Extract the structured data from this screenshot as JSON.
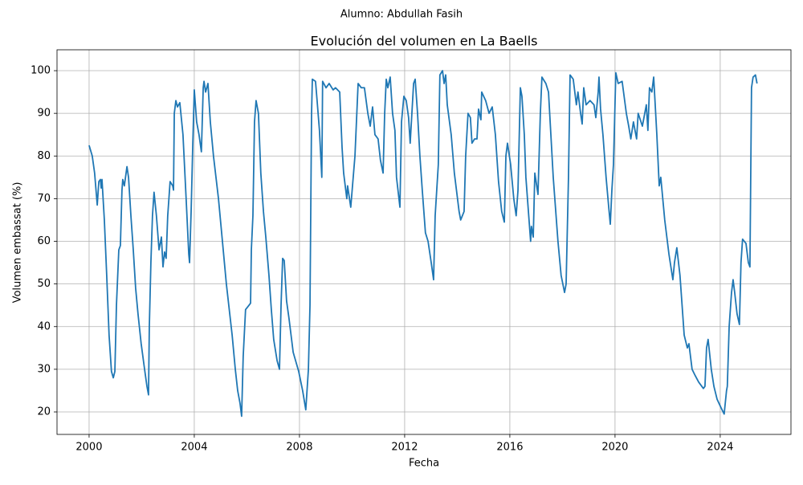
{
  "chart_data": {
    "type": "line",
    "suptitle": "Alumno: Abdullah Fasih",
    "title": "Evolución del volumen en La Baells",
    "xlabel": "Fecha",
    "ylabel": "Volumen embassat (%)",
    "color": "#1f77b4",
    "grid": true,
    "xlim": [
      1998.78,
      2026.69
    ],
    "ylim": [
      14.73,
      104.9
    ],
    "xticks": [
      2000,
      2004,
      2008,
      2012,
      2016,
      2020,
      2024
    ],
    "yticks": [
      20,
      30,
      40,
      50,
      60,
      70,
      80,
      90,
      100
    ],
    "x": [
      2000.0,
      2000.12,
      2000.21,
      2000.31,
      2000.37,
      2000.43,
      2000.46,
      2000.49,
      2000.58,
      2000.67,
      2000.76,
      2000.85,
      2000.92,
      2000.98,
      2001.04,
      2001.13,
      2001.19,
      2001.25,
      2001.28,
      2001.34,
      2001.44,
      2001.5,
      2001.59,
      2001.68,
      2001.77,
      2001.86,
      2001.98,
      2002.11,
      2002.2,
      2002.26,
      2002.29,
      2002.35,
      2002.41,
      2002.47,
      2002.56,
      2002.66,
      2002.75,
      2002.81,
      2002.87,
      2002.93,
      2002.99,
      2003.08,
      2003.18,
      2003.21,
      2003.24,
      2003.3,
      2003.36,
      2003.45,
      2003.57,
      2003.69,
      2003.79,
      2003.82,
      2003.88,
      2003.94,
      2004.0,
      2004.09,
      2004.18,
      2004.27,
      2004.34,
      2004.37,
      2004.43,
      2004.52,
      2004.61,
      2004.73,
      2004.92,
      2005.07,
      2005.22,
      2005.44,
      2005.56,
      2005.65,
      2005.74,
      2005.8,
      2005.86,
      2005.95,
      2006.08,
      2006.14,
      2006.17,
      2006.23,
      2006.29,
      2006.35,
      2006.44,
      2006.53,
      2006.63,
      2006.72,
      2006.84,
      2006.93,
      2007.02,
      2007.15,
      2007.24,
      2007.3,
      2007.36,
      2007.42,
      2007.51,
      2007.6,
      2007.76,
      2007.97,
      2008.12,
      2008.24,
      2008.34,
      2008.4,
      2008.46,
      2008.49,
      2008.61,
      2008.67,
      2008.76,
      2008.85,
      2008.88,
      2009.01,
      2009.13,
      2009.28,
      2009.37,
      2009.53,
      2009.62,
      2009.68,
      2009.8,
      2009.83,
      2009.95,
      2010.11,
      2010.23,
      2010.35,
      2010.47,
      2010.6,
      2010.69,
      2010.78,
      2010.87,
      2010.99,
      2011.08,
      2011.18,
      2011.24,
      2011.3,
      2011.36,
      2011.45,
      2011.54,
      2011.63,
      2011.69,
      2011.82,
      2011.88,
      2011.97,
      2012.06,
      2012.15,
      2012.21,
      2012.34,
      2012.4,
      2012.49,
      2012.58,
      2012.67,
      2012.79,
      2012.89,
      2013.01,
      2013.1,
      2013.16,
      2013.22,
      2013.28,
      2013.34,
      2013.44,
      2013.5,
      2013.56,
      2013.62,
      2013.77,
      2013.89,
      2014.07,
      2014.13,
      2014.26,
      2014.32,
      2014.41,
      2014.5,
      2014.56,
      2014.66,
      2014.75,
      2014.81,
      2014.9,
      2014.93,
      2015.08,
      2015.21,
      2015.33,
      2015.45,
      2015.57,
      2015.69,
      2015.79,
      2015.85,
      2015.91,
      2016.03,
      2016.15,
      2016.24,
      2016.31,
      2016.4,
      2016.46,
      2016.55,
      2016.61,
      2016.73,
      2016.79,
      2016.82,
      2016.89,
      2016.95,
      2017.07,
      2017.16,
      2017.22,
      2017.37,
      2017.47,
      2017.56,
      2017.65,
      2017.83,
      2017.95,
      2018.08,
      2018.14,
      2018.23,
      2018.29,
      2018.41,
      2018.53,
      2018.59,
      2018.69,
      2018.75,
      2018.81,
      2018.9,
      2019.05,
      2019.2,
      2019.27,
      2019.36,
      2019.39,
      2019.45,
      2019.54,
      2019.66,
      2019.76,
      2019.82,
      2019.88,
      2019.94,
      2020.03,
      2020.12,
      2020.27,
      2020.43,
      2020.52,
      2020.6,
      2020.7,
      2020.82,
      2020.88,
      2021.04,
      2021.19,
      2021.25,
      2021.31,
      2021.4,
      2021.47,
      2021.59,
      2021.68,
      2021.74,
      2021.89,
      2022.05,
      2022.2,
      2022.26,
      2022.35,
      2022.47,
      2022.63,
      2022.75,
      2022.81,
      2022.93,
      2023.05,
      2023.18,
      2023.36,
      2023.42,
      2023.48,
      2023.54,
      2023.66,
      2023.76,
      2023.88,
      2024.03,
      2024.15,
      2024.24,
      2024.27,
      2024.34,
      2024.43,
      2024.49,
      2024.55,
      2024.64,
      2024.73,
      2024.79,
      2024.85,
      2024.98,
      2025.07,
      2025.13,
      2025.19,
      2025.25,
      2025.34,
      2025.4
    ],
    "values": [
      82.5,
      80,
      76,
      68.5,
      74,
      74.5,
      72.5,
      74.5,
      65,
      52,
      38,
      29.5,
      28,
      29.5,
      45,
      58,
      59,
      72,
      74.5,
      73,
      77.5,
      75,
      66,
      58,
      49,
      43,
      36,
      30,
      26,
      24,
      40,
      55,
      66,
      71.5,
      66,
      58,
      61,
      54,
      57.5,
      56,
      66,
      74,
      73,
      72,
      90,
      93,
      91.5,
      92.5,
      85,
      70,
      57,
      55,
      67,
      82,
      95.5,
      88,
      85,
      81,
      96,
      97.5,
      95,
      97,
      88,
      80,
      70,
      60,
      50,
      38,
      30,
      25,
      22,
      19,
      33,
      44,
      45,
      45.5,
      58,
      66,
      88,
      93,
      90,
      76,
      67,
      61,
      52,
      44,
      37,
      32,
      30,
      45,
      56,
      55.5,
      46,
      42,
      34,
      29.5,
      25,
      20.5,
      30,
      45,
      90,
      98,
      97.5,
      93,
      86,
      75,
      97.5,
      96,
      97,
      95.5,
      96,
      95,
      82,
      76,
      70,
      73,
      68,
      80,
      97,
      96,
      96,
      90,
      87,
      91.5,
      85,
      84,
      79,
      76,
      90,
      98,
      96,
      98.5,
      90,
      86,
      75,
      68,
      88,
      94,
      93,
      89,
      83,
      97,
      98,
      90,
      80,
      72,
      62,
      60,
      55,
      51,
      66,
      72,
      78,
      99,
      100,
      97,
      99,
      92,
      85,
      76,
      67,
      65,
      67,
      80,
      90,
      89,
      83,
      84,
      84,
      91,
      88.5,
      95,
      93,
      90,
      91.5,
      85,
      74,
      67,
      64.5,
      80,
      83,
      78,
      70,
      66,
      72,
      96,
      94,
      85,
      75,
      65,
      60,
      63.5,
      61,
      76,
      71,
      90,
      98.5,
      97,
      95,
      85,
      75,
      60,
      52,
      48,
      50,
      75,
      99,
      98,
      92,
      95,
      90,
      87.5,
      96,
      92,
      93,
      92,
      89,
      95,
      98.5,
      91,
      85,
      75,
      68,
      64,
      72,
      78,
      99.5,
      97,
      97.5,
      90,
      87,
      84,
      88,
      84,
      90,
      87,
      92,
      86,
      96,
      95,
      98.5,
      85,
      73,
      75,
      65,
      57,
      51,
      55,
      58.5,
      52,
      38,
      35,
      36,
      30,
      28.5,
      27,
      25.5,
      26,
      35,
      37,
      30,
      26,
      23,
      21,
      19.5,
      25,
      26,
      40,
      48,
      51,
      48,
      43,
      40.5,
      55,
      60.5,
      59.5,
      55,
      54,
      96,
      98.5,
      99,
      97
    ]
  }
}
